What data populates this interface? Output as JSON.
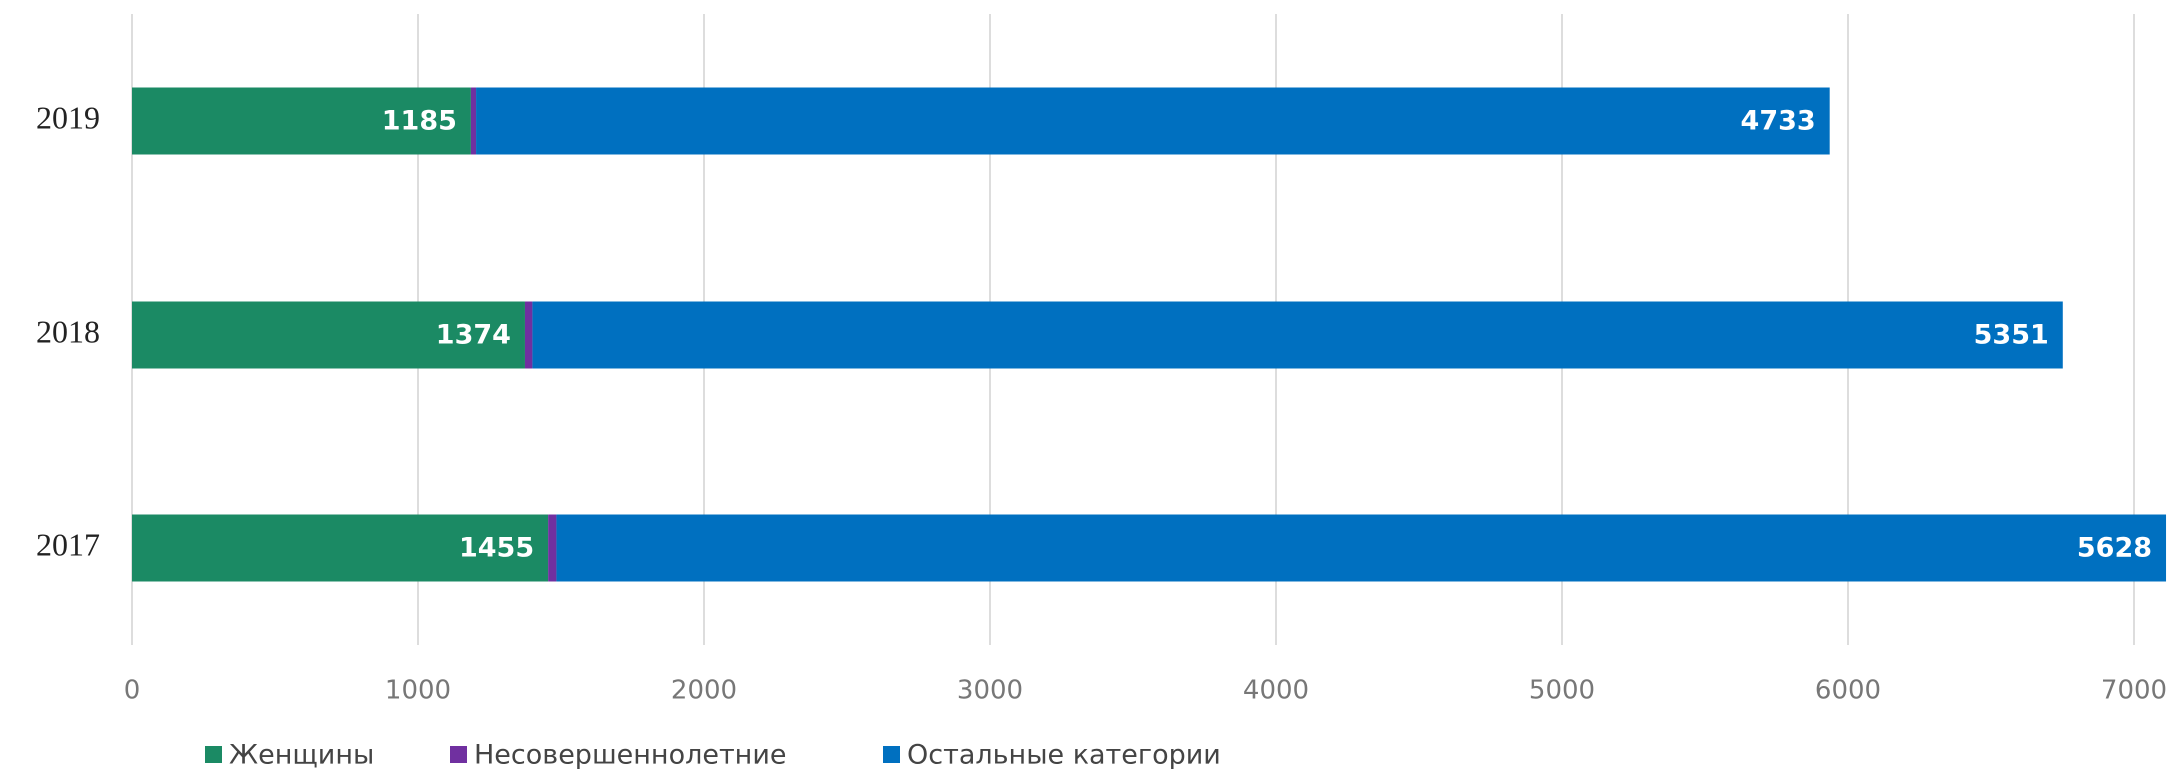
{
  "chart_data": {
    "type": "stacked_barh",
    "categories": [
      "2019",
      "2018",
      "2017"
    ],
    "series": [
      {
        "name": "Женщины",
        "color": "#1b8a64",
        "values": [
          1185,
          1374,
          1455
        ]
      },
      {
        "name": "Несовершеннолетние",
        "color": "#7030a0",
        "values": [
          18,
          26,
          29
        ]
      },
      {
        "name": "Остальные категории",
        "color": "#0070c0",
        "values": [
          4733,
          5351,
          5628
        ]
      }
    ],
    "xlim": [
      0,
      7000
    ],
    "xticks": [
      0,
      1000,
      2000,
      3000,
      4000,
      5000,
      6000,
      7000
    ],
    "grid": true
  }
}
